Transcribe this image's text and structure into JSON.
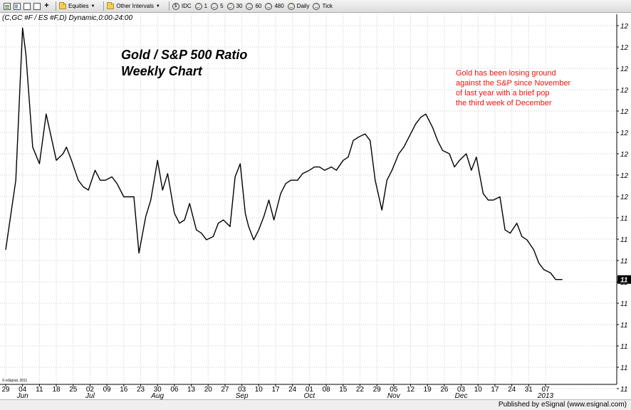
{
  "toolbar": {
    "items": [
      {
        "label": "Equities",
        "icon": "folder-icon",
        "dropdown": true
      },
      {
        "label": "Other Intervals",
        "icon": "folder-icon",
        "dropdown": true
      },
      {
        "label": "IDC",
        "icon": "interval-icon"
      },
      {
        "label": "1",
        "icon": "interval-icon"
      },
      {
        "label": "5",
        "icon": "interval-icon"
      },
      {
        "label": "30",
        "icon": "interval-icon"
      },
      {
        "label": "60",
        "icon": "interval-icon"
      },
      {
        "label": "480",
        "icon": "interval-icon"
      },
      {
        "label": "Daily",
        "icon": "interval-icon"
      },
      {
        "label": "Tick",
        "icon": "interval-icon"
      }
    ]
  },
  "symbol_line": "(C,GC #F / ES #F,D) Dynamic,0:00-24:00",
  "watermark": "© eSignal, 2011",
  "footer": "Published by eSignal (www.esignal.com)",
  "colors": {
    "line": "#000000",
    "annotation": "#e8140f",
    "grid": "#c8c8c8",
    "footer_bg": "#efefef"
  },
  "chart_data": {
    "type": "line",
    "title": "Gold / S&P 500 Ratio",
    "subtitle": "Weekly Chart",
    "annotation": [
      "Gold has been losing ground",
      "against the S&P since November",
      "of last year with a brief pop",
      "the third week of December"
    ],
    "x_ticks": [
      "29",
      "04",
      "11",
      "18",
      "25",
      "02",
      "09",
      "16",
      "23",
      "30",
      "06",
      "13",
      "20",
      "27",
      "03",
      "10",
      "17",
      "24",
      "01",
      "08",
      "15",
      "22",
      "29",
      "05",
      "12",
      "19",
      "26",
      "03",
      "10",
      "17",
      "24",
      "31",
      "07"
    ],
    "x_months": [
      {
        "label": "Jun",
        "tick_index": 1
      },
      {
        "label": "Jul",
        "tick_index": 5
      },
      {
        "label": "Aug",
        "tick_index": 9
      },
      {
        "label": "Sep",
        "tick_index": 14
      },
      {
        "label": "Oct",
        "tick_index": 18
      },
      {
        "label": "Nov",
        "tick_index": 23
      },
      {
        "label": "Dec",
        "tick_index": 27
      },
      {
        "label": "2013",
        "tick_index": 32
      }
    ],
    "y_tick_labels": [
      "12",
      "12",
      "12",
      "12",
      "12",
      "12",
      "12",
      "12",
      "12",
      "11",
      "11",
      "11",
      "11",
      "11",
      "11",
      "11",
      "11",
      "11"
    ],
    "last_value_label": "11",
    "grid": true,
    "ylim": [
      0,
      100
    ],
    "series": [
      {
        "name": "",
        "x": [
          0,
          0.6,
          1,
          1.2,
          1.6,
          2,
          2.4,
          3,
          3.4,
          3.6,
          3.9,
          4.3,
          4.6,
          4.9,
          5.3,
          5.6,
          5.9,
          6.3,
          6.6,
          7,
          7.3,
          7.6,
          7.9,
          8.3,
          8.6,
          9,
          9.3,
          9.6,
          10,
          10.3,
          10.6,
          10.9,
          11.3,
          11.6,
          11.9,
          12.3,
          12.6,
          12.9,
          13.3,
          13.6,
          13.9,
          14.2,
          14.4,
          14.7,
          15,
          15.3,
          15.6,
          15.9,
          16.3,
          16.6,
          16.9,
          17.3,
          17.6,
          18,
          18.3,
          18.6,
          18.9,
          19.3,
          19.6,
          20,
          20.3,
          20.6,
          20.9,
          21.3,
          21.6,
          21.9,
          22.3,
          22.6,
          22.9,
          23.3,
          23.6,
          23.9,
          24.3,
          24.6,
          24.9,
          25.3,
          25.6,
          25.9,
          26.3,
          26.6,
          26.9,
          27.3,
          27.6,
          27.9,
          28.3,
          28.6,
          28.9,
          29.3,
          29.6,
          29.9,
          30.3,
          30.6,
          30.9,
          31.3,
          31.6,
          31.9,
          32.3,
          32.6,
          33
        ],
        "values": [
          31,
          52,
          98,
          90,
          62,
          57,
          72,
          58,
          60,
          62,
          58,
          52,
          50,
          49,
          55,
          52,
          52,
          53,
          51,
          47,
          47,
          47,
          30,
          41,
          46,
          58,
          49,
          54,
          42,
          39,
          40,
          45,
          37,
          36,
          34,
          35,
          39,
          40,
          38,
          53,
          57,
          42,
          38,
          34,
          37,
          41,
          46,
          40,
          48,
          51,
          52,
          52,
          54,
          55,
          56,
          56,
          55,
          56,
          55,
          58,
          59,
          64,
          65,
          66,
          64,
          52,
          43,
          52,
          55,
          60,
          62,
          65,
          69,
          71,
          72,
          68,
          64,
          61,
          60,
          56,
          58,
          60,
          55,
          59,
          48,
          46,
          46,
          47,
          37,
          36,
          39,
          35,
          34,
          31,
          27,
          25,
          24,
          22,
          22
        ]
      }
    ]
  }
}
